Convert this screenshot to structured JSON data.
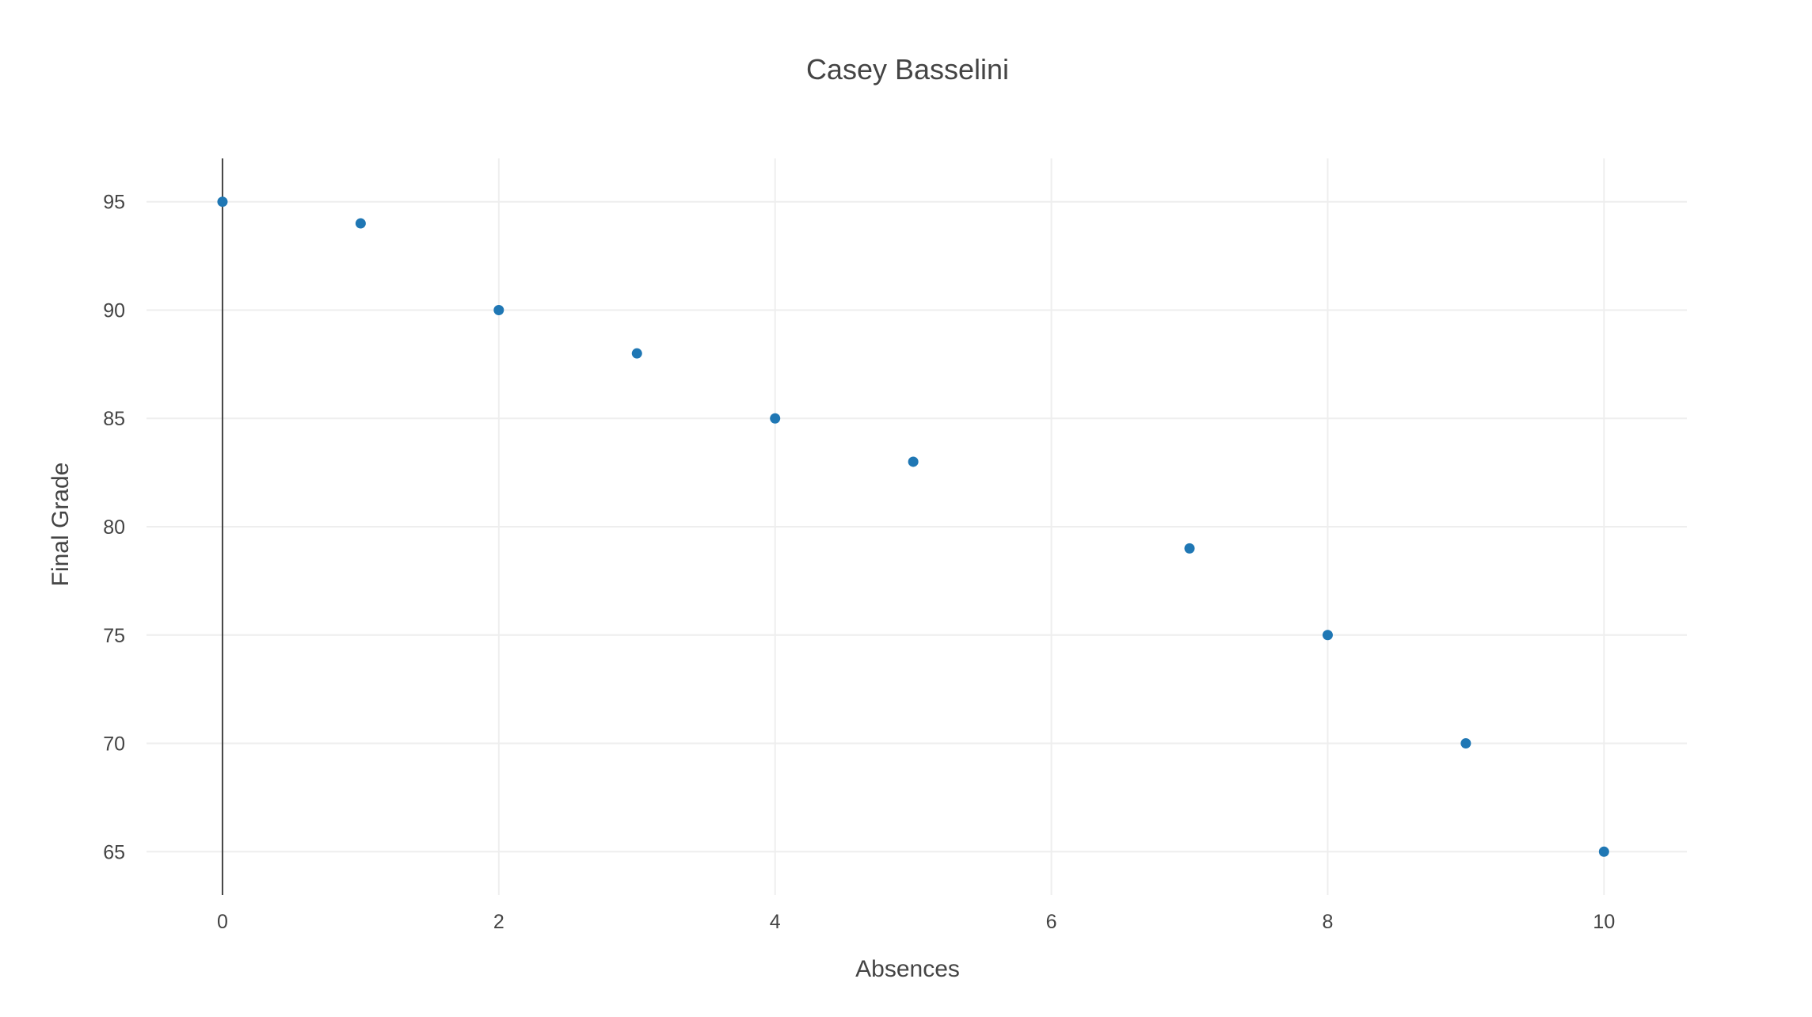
{
  "chart_data": {
    "type": "scatter",
    "title": "Casey Basselini",
    "xlabel": "Absences",
    "ylabel": "Final Grade",
    "xlim": [
      -0.55,
      10.6
    ],
    "ylim": [
      63,
      97
    ],
    "x_ticks": [
      0,
      2,
      4,
      6,
      8,
      10
    ],
    "y_ticks": [
      65,
      70,
      75,
      80,
      85,
      90,
      95
    ],
    "grid": true,
    "legend": false,
    "colors": {
      "marker": "#1f77b4"
    },
    "series": [
      {
        "x": [
          0,
          1,
          2,
          3,
          4,
          5,
          7,
          8,
          9,
          10
        ],
        "y": [
          95,
          94,
          90,
          88,
          85,
          83,
          79,
          75,
          70,
          65
        ]
      }
    ]
  }
}
